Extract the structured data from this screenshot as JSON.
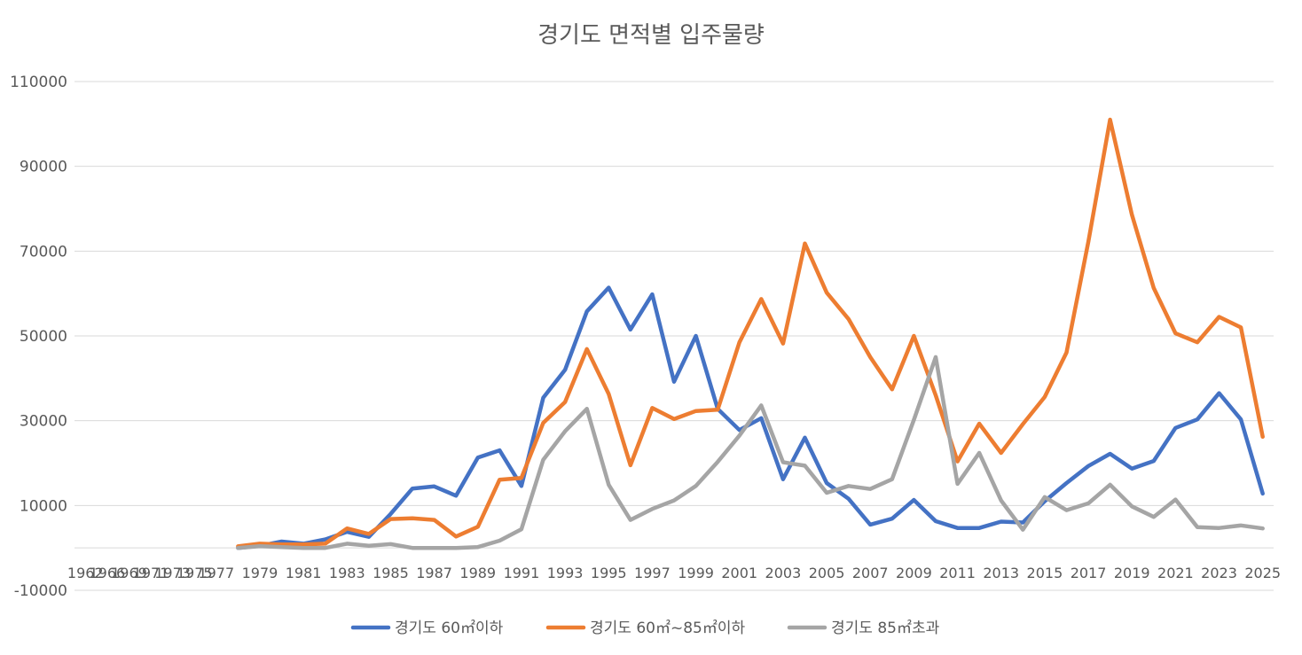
{
  "chart_data": {
    "type": "line",
    "title": "경기도 면적별 입주물량",
    "xlabel": "",
    "ylabel": "",
    "ylim": [
      -10000,
      110000
    ],
    "y_ticks": [
      110000,
      90000,
      70000,
      50000,
      30000,
      10000,
      -10000
    ],
    "x": [
      1962,
      1966,
      1969,
      1971,
      1973,
      1975,
      1977,
      1978,
      1979,
      1980,
      1981,
      1982,
      1983,
      1984,
      1985,
      1986,
      1987,
      1988,
      1989,
      1990,
      1991,
      1992,
      1993,
      1994,
      1995,
      1996,
      1997,
      1998,
      1999,
      2000,
      2001,
      2002,
      2003,
      2004,
      2005,
      2006,
      2007,
      2008,
      2009,
      2010,
      2011,
      2012,
      2013,
      2014,
      2015,
      2016,
      2017,
      2018,
      2019,
      2020,
      2021,
      2022,
      2023,
      2024,
      2025
    ],
    "x_tick_labels": [
      "1962",
      "1966",
      "1969",
      "1971",
      "1973",
      "1975",
      "1977",
      "1979",
      "1981",
      "1983",
      "1985",
      "1987",
      "1989",
      "1991",
      "1993",
      "1995",
      "1997",
      "1999",
      "2001",
      "2003",
      "2005",
      "2007",
      "2009",
      "2011",
      "2013",
      "2015",
      "2017",
      "2019",
      "2021",
      "2023",
      "2025"
    ],
    "grid": true,
    "legend_position": "bottom",
    "series": [
      {
        "name": "경기도 60㎡이하",
        "color": "#4472c4",
        "values": [
          null,
          null,
          null,
          null,
          null,
          null,
          null,
          0,
          500,
          1500,
          1000,
          2000,
          3800,
          2600,
          8000,
          14000,
          14500,
          12300,
          21300,
          23000,
          14600,
          35400,
          42000,
          55800,
          61400,
          51500,
          59800,
          39200,
          50000,
          32800,
          27800,
          30600,
          16200,
          26000,
          15300,
          11600,
          5500,
          6900,
          11300,
          6300,
          4700,
          4700,
          6200,
          6000,
          11000,
          15300,
          19300,
          22200,
          18700,
          20500,
          28300,
          30300,
          36500,
          30300,
          12800
        ]
      },
      {
        "name": "경기도 60㎡~85㎡이하",
        "color": "#ed7d31",
        "values": [
          null,
          null,
          null,
          null,
          null,
          null,
          null,
          400,
          1000,
          800,
          800,
          1000,
          4600,
          3300,
          6800,
          7000,
          6600,
          2700,
          5000,
          16100,
          16500,
          29500,
          34400,
          46900,
          36300,
          19500,
          33000,
          30400,
          32300,
          32600,
          48500,
          58700,
          48200,
          71800,
          60200,
          54000,
          45000,
          37400,
          50000,
          36000,
          20400,
          29300,
          22400,
          29200,
          35600,
          46100,
          72200,
          101000,
          78600,
          61300,
          50600,
          48500,
          54500,
          52000,
          26200
        ]
      },
      {
        "name": "경기도 85㎡초과",
        "color": "#a5a5a5",
        "values": [
          null,
          null,
          null,
          null,
          null,
          null,
          null,
          0,
          400,
          200,
          0,
          0,
          1000,
          500,
          900,
          0,
          0,
          0,
          200,
          1700,
          4400,
          20800,
          27500,
          32800,
          14900,
          6600,
          9200,
          11200,
          14600,
          20300,
          26500,
          33600,
          20200,
          19400,
          13000,
          14600,
          13900,
          16200,
          30200,
          45000,
          15100,
          22400,
          11200,
          4300,
          12000,
          8900,
          10500,
          14900,
          9800,
          7300,
          11400,
          4900,
          4700,
          5300,
          4600
        ]
      }
    ]
  }
}
